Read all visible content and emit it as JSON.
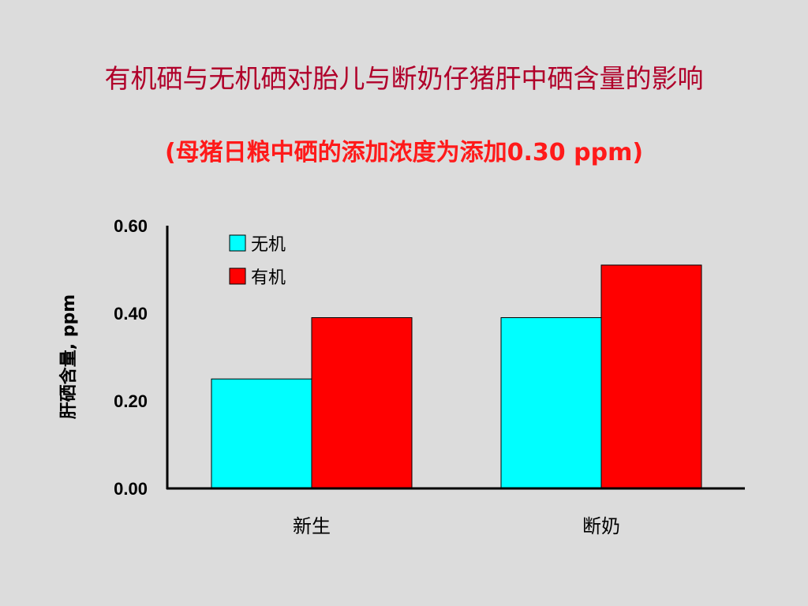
{
  "slide": {
    "title": "有机硒与无机硒对胎儿与断奶仔猪肝中硒含量的影响",
    "subtitle": "(母猪日粮中硒的添加浓度为添加0.30 ppm)"
  },
  "colors": {
    "background": "#dcdcdc",
    "title": "#b0002a",
    "subtitle": "#ff1a1a",
    "series_inorganic": "#00ffff",
    "series_organic": "#ff0000"
  },
  "chart_data": {
    "type": "bar",
    "categories": [
      "新生",
      "断奶"
    ],
    "series": [
      {
        "name": "无机",
        "values": [
          0.25,
          0.39
        ]
      },
      {
        "name": "有机",
        "values": [
          0.39,
          0.51
        ]
      }
    ],
    "ylabel": "肝硒含量, ppm",
    "xlabel": "",
    "ylim": [
      0,
      0.6
    ],
    "yticks": [
      "0.00",
      "0.20",
      "0.40",
      "0.60"
    ],
    "grid": false,
    "legend_position": "top-left"
  }
}
